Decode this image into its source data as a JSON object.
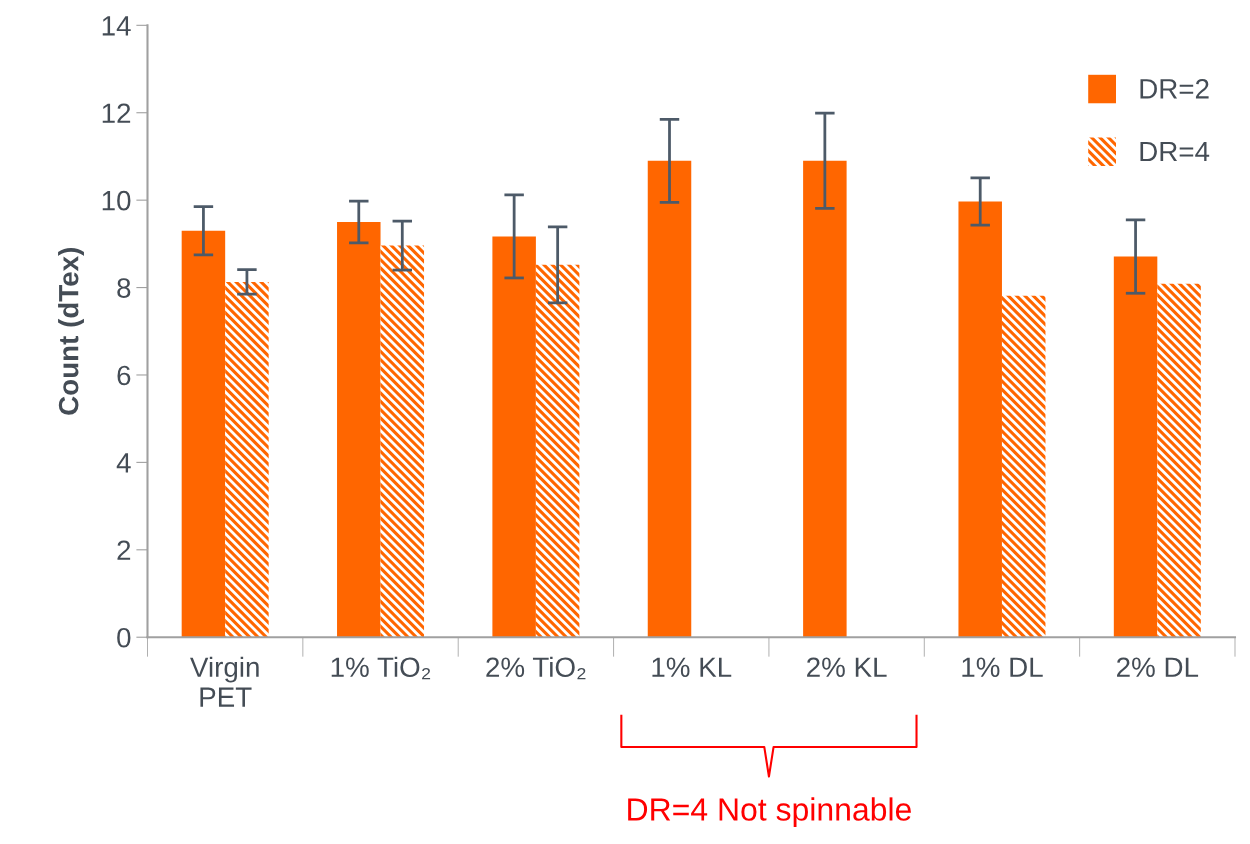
{
  "chart_data": {
    "type": "bar",
    "ylabel": "Count (dTex)",
    "categories": [
      "Virgin\nPET",
      "1% TiO₂",
      "2% TiO₂",
      "1% KL",
      "2% KL",
      "1% DL",
      "2% DL"
    ],
    "series": [
      {
        "name": "DR=2",
        "color": "#ff6600",
        "values": [
          9.3,
          9.5,
          9.17,
          10.9,
          10.9,
          9.97,
          8.71
        ],
        "errors": [
          0.55,
          0.48,
          0.95,
          0.95,
          1.09,
          0.54,
          0.84
        ]
      },
      {
        "name": "DR=4",
        "color": "#ff6600",
        "values": [
          8.13,
          8.96,
          8.52,
          null,
          null,
          7.81,
          8.09
        ],
        "errors": [
          0.28,
          0.56,
          0.87,
          null,
          null,
          null,
          null
        ]
      }
    ],
    "ylim": [
      0,
      14
    ],
    "yticks": [
      0,
      2,
      4,
      6,
      8,
      10,
      12,
      14
    ],
    "grid": false,
    "legend": "top right",
    "annotations": [
      "DR=4 Not spinnable"
    ]
  }
}
